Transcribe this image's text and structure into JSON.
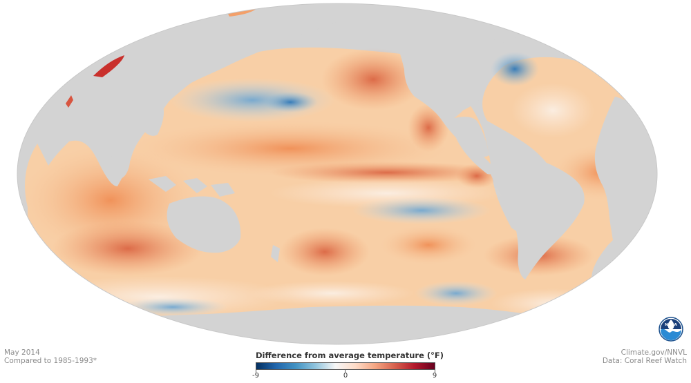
{
  "map": {
    "projection": "mollweide",
    "variable": "sea surface temperature anomaly",
    "land_color": "#d3d3d3",
    "outer_background": "#ffffff"
  },
  "caption": {
    "date": "May 2014",
    "baseline": "Compared to 1985-1993*",
    "credit": "Climate.gov/NNVL",
    "source": "Data: Coral Reef Watch"
  },
  "legend": {
    "title": "Difference from average temperature (°F)",
    "min_label": "-9",
    "mid_label": "0",
    "max_label": "9",
    "colors": [
      "#053061",
      "#2166ac",
      "#4393c3",
      "#92c5de",
      "#f7f7f7",
      "#fddbc7",
      "#f4a582",
      "#d6604d",
      "#b2182b",
      "#67001f"
    ]
  },
  "logo": {
    "name": "noaa-logo",
    "text": "NOAA"
  }
}
